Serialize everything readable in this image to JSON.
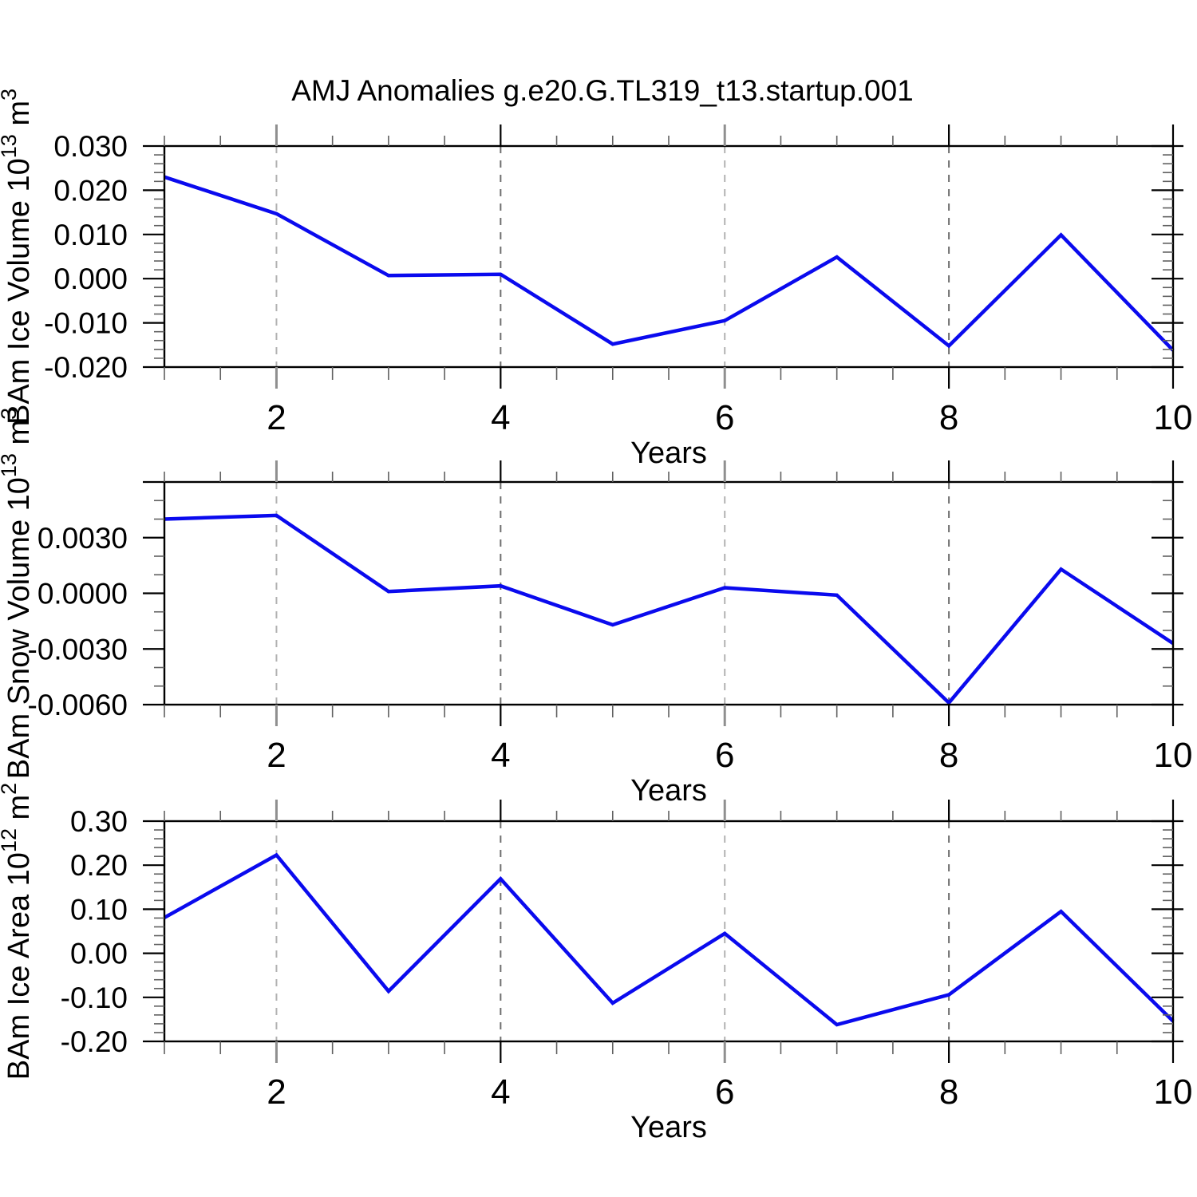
{
  "page": {
    "title": "AMJ Anomalies g.e20.G.TL319_t13.startup.001",
    "background": "#ffffff"
  },
  "style": {
    "line_color": "#0a0aee",
    "axis_color": "#000000",
    "minor_tick_color": "#606060",
    "grid_color_light": "#b2b2b2",
    "grid_color_dark": "#6e6e6e",
    "text_color": "#000000"
  },
  "x_axis": {
    "label": "Years",
    "range": [
      1,
      10
    ],
    "major_ticks": [
      2,
      4,
      6,
      8,
      10
    ],
    "major_tick_labels": [
      "2",
      "4",
      "6",
      "8",
      "10"
    ],
    "minor_step": 0.5,
    "gridline_years": [
      2,
      4,
      6,
      8
    ]
  },
  "chart_data": [
    {
      "type": "line",
      "name": "bam-ice-volume",
      "ylabel": {
        "base": "BAm Ice Volume 10",
        "sup": "13",
        "base2": " m",
        "sup2": "3",
        "plain": "BAm Ice Volume 10^13 m^3"
      },
      "xlabel": "Years",
      "x": [
        1,
        2,
        3,
        4,
        5,
        6,
        7,
        8,
        9,
        10
      ],
      "values": [
        0.023,
        0.0147,
        0.0007,
        0.001,
        -0.0148,
        -0.0095,
        0.0049,
        -0.0152,
        0.0099,
        -0.0162
      ],
      "ylim": [
        -0.02,
        0.03
      ],
      "ytick_values": [
        0.03,
        0.02,
        0.01,
        0.0,
        -0.01,
        -0.02
      ],
      "ytick_labels": [
        "0.030",
        "0.020",
        "0.010",
        "0.000",
        "-0.010",
        "-0.020"
      ],
      "y_minor_step": 0.002,
      "grid": true,
      "legend": "none"
    },
    {
      "type": "line",
      "name": "bam-snow-volume",
      "ylabel": {
        "base": "BAm Snow Volume 10",
        "sup": "13",
        "base2": " m",
        "sup2": "3",
        "plain": "BAm Snow Volume 10^13 m^3"
      },
      "xlabel": "Years",
      "x": [
        1,
        2,
        3,
        4,
        5,
        6,
        7,
        8,
        9,
        10
      ],
      "values": [
        0.004,
        0.0042,
        0.0001,
        0.0004,
        -0.0017,
        0.0003,
        -0.0001,
        -0.0059,
        0.0013,
        -0.0027
      ],
      "ylim": [
        -0.006,
        0.006
      ],
      "ytick_values": [
        0.006,
        0.003,
        0.0,
        -0.003,
        -0.006
      ],
      "ytick_labels": [
        "",
        "0.0030",
        "0.0000",
        "-0.0030",
        "-0.0060"
      ],
      "y_minor_step": 0.001,
      "grid": true,
      "legend": "none"
    },
    {
      "type": "line",
      "name": "bam-ice-area",
      "ylabel": {
        "base": "BAm Ice Area 10",
        "sup": "12",
        "base2": " m",
        "sup2": "2",
        "plain": "BAm Ice Area 10^12 m^2"
      },
      "xlabel": "Years",
      "x": [
        1,
        2,
        3,
        4,
        5,
        6,
        7,
        8,
        9,
        10
      ],
      "values": [
        0.081,
        0.223,
        -0.086,
        0.169,
        -0.113,
        0.045,
        -0.162,
        -0.094,
        0.095,
        -0.154
      ],
      "ylim": [
        -0.2,
        0.3
      ],
      "ytick_values": [
        0.3,
        0.2,
        0.1,
        0.0,
        -0.1,
        -0.2
      ],
      "ytick_labels": [
        "0.30",
        "0.20",
        "0.10",
        "0.00",
        "-0.10",
        "-0.20"
      ],
      "y_minor_step": 0.02,
      "grid": true,
      "legend": "none"
    }
  ]
}
